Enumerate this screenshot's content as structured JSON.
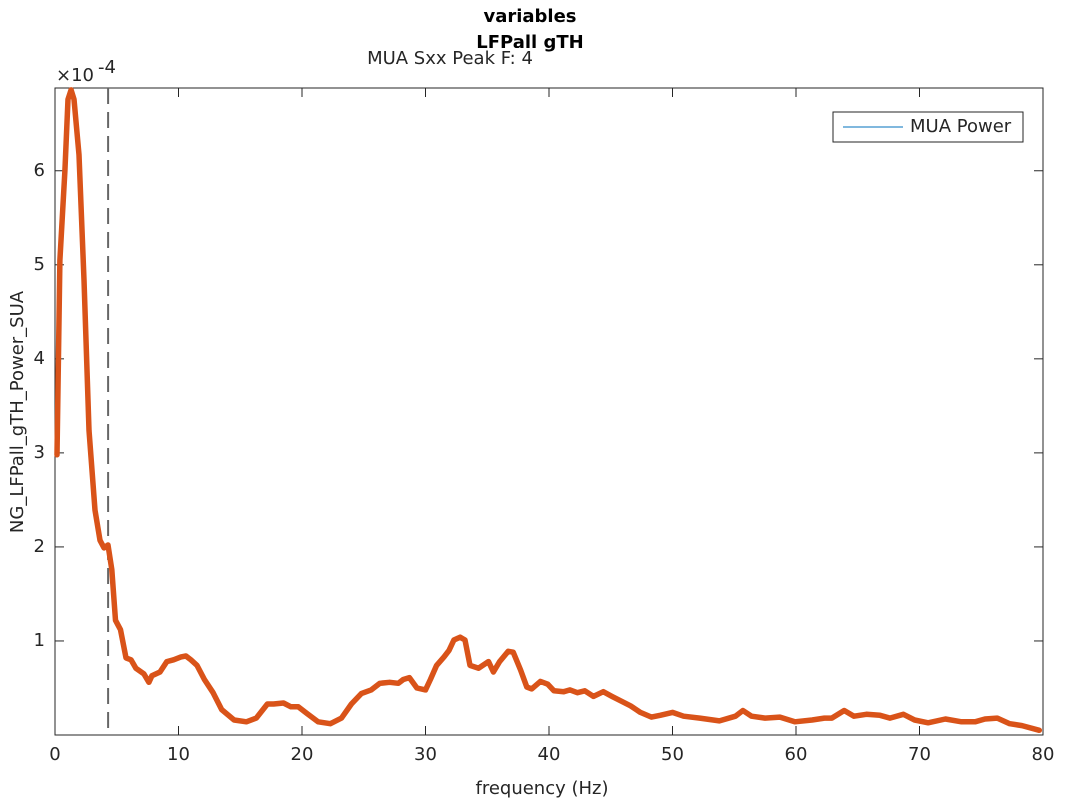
{
  "chart_data": {
    "type": "line",
    "title": "variables",
    "title_line2": "LFPall gTH",
    "subtitle": "MUA Sxx Peak F: 4",
    "x_label": "frequency (Hz)",
    "y_label": "NG_LFPall_gTH_Power_SUA",
    "y_multiplier": {
      "base": "×10",
      "exponent": "-4"
    },
    "xlim": [
      0,
      80
    ],
    "ylim": [
      0,
      6.88
    ],
    "xticks": [
      0,
      10,
      20,
      30,
      40,
      50,
      60,
      70,
      80
    ],
    "yticks": [
      1,
      2,
      3,
      4,
      5,
      6
    ],
    "grid": false,
    "vline": 4.3,
    "legend_position": "top-right",
    "legend_line_color": "#0072BD",
    "x": [
      0.16,
      0.4,
      0.8,
      1.05,
      1.3,
      1.54,
      1.94,
      2.35,
      2.75,
      3.24,
      3.64,
      3.97,
      4.29,
      4.6,
      4.9,
      5.3,
      5.75,
      6.15,
      6.55,
      7.2,
      7.6,
      7.85,
      8.5,
      9.05,
      9.6,
      10.2,
      10.6,
      11.0,
      11.5,
      12.1,
      12.8,
      13.5,
      14.5,
      15.5,
      16.3,
      17.2,
      17.7,
      18.5,
      19.1,
      19.7,
      20.4,
      21.3,
      22.3,
      23.2,
      24.0,
      24.8,
      25.6,
      26.3,
      27.1,
      27.8,
      28.2,
      28.7,
      29.3,
      30.0,
      30.4,
      30.9,
      31.5,
      31.9,
      32.3,
      32.8,
      33.2,
      33.6,
      34.3,
      35.1,
      35.5,
      36.0,
      36.7,
      37.1,
      37.7,
      38.2,
      38.6,
      39.3,
      39.9,
      40.4,
      41.2,
      41.7,
      42.3,
      42.9,
      43.6,
      44.4,
      45.1,
      45.7,
      46.6,
      47.4,
      48.3,
      49.0,
      50.0,
      50.9,
      52.2,
      53.8,
      55.1,
      55.7,
      56.4,
      57.5,
      58.7,
      59.9,
      61.3,
      62.3,
      62.9,
      63.9,
      64.7,
      65.7,
      66.8,
      67.6,
      68.7,
      69.6,
      70.7,
      72.1,
      73.4,
      74.5,
      75.3,
      76.3,
      77.3,
      78.3,
      79.7
    ],
    "series": [
      {
        "name": "MUA Power",
        "color": "#D95319",
        "values": [
          2.98,
          5.05,
          6.0,
          6.76,
          6.86,
          6.76,
          6.17,
          4.84,
          3.24,
          2.39,
          2.07,
          1.99,
          2.02,
          1.76,
          1.22,
          1.12,
          0.82,
          0.8,
          0.71,
          0.65,
          0.56,
          0.63,
          0.67,
          0.78,
          0.8,
          0.83,
          0.84,
          0.8,
          0.74,
          0.59,
          0.45,
          0.27,
          0.16,
          0.14,
          0.18,
          0.33,
          0.33,
          0.34,
          0.3,
          0.3,
          0.23,
          0.14,
          0.12,
          0.18,
          0.33,
          0.44,
          0.48,
          0.55,
          0.56,
          0.55,
          0.59,
          0.61,
          0.5,
          0.48,
          0.59,
          0.74,
          0.83,
          0.9,
          1.01,
          1.04,
          1.01,
          0.74,
          0.71,
          0.78,
          0.67,
          0.78,
          0.89,
          0.88,
          0.69,
          0.51,
          0.49,
          0.57,
          0.54,
          0.47,
          0.46,
          0.48,
          0.45,
          0.47,
          0.41,
          0.46,
          0.41,
          0.37,
          0.31,
          0.24,
          0.19,
          0.21,
          0.24,
          0.2,
          0.18,
          0.15,
          0.2,
          0.26,
          0.2,
          0.18,
          0.19,
          0.14,
          0.16,
          0.18,
          0.18,
          0.26,
          0.2,
          0.22,
          0.21,
          0.18,
          0.22,
          0.16,
          0.13,
          0.17,
          0.14,
          0.14,
          0.17,
          0.18,
          0.12,
          0.1,
          0.05
        ]
      }
    ]
  }
}
